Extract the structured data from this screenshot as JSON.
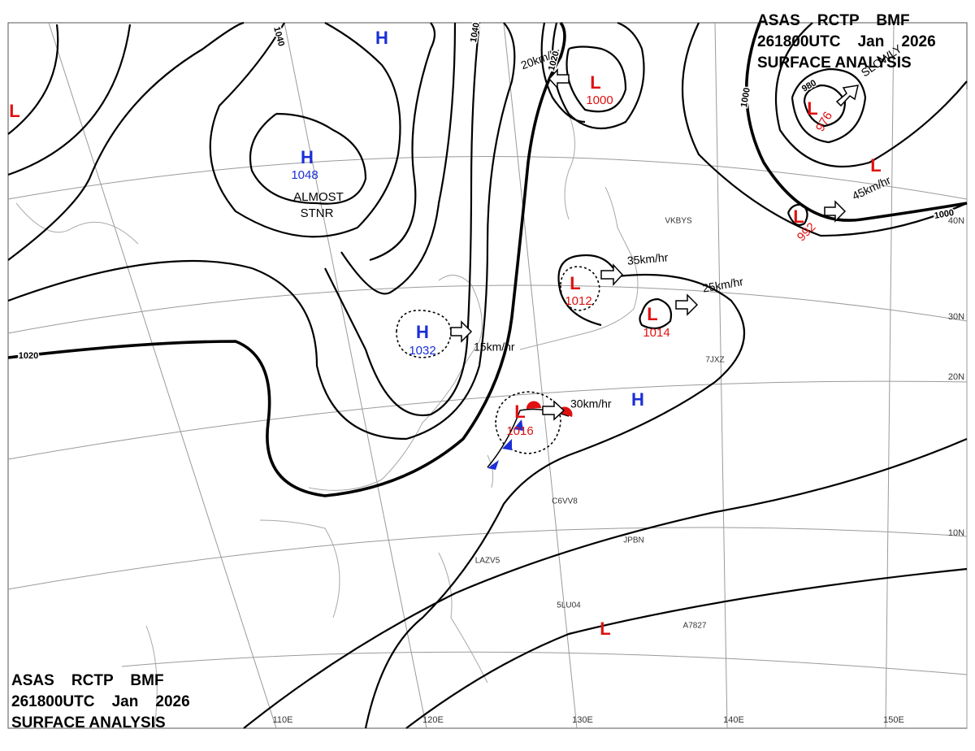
{
  "header": {
    "lines": [
      "ASAS    RCTP    BMF",
      "261800UTC    Jan    2026",
      "SURFACE ANALYSIS"
    ]
  },
  "footer": {
    "lines": [
      "ASAS    RCTP    BMF",
      "261800UTC    Jan    2026",
      "SURFACE ANALYSIS"
    ]
  },
  "systems": [
    {
      "symbol": "H"
    },
    {
      "symbol": "H",
      "pressure": "1048"
    },
    {
      "symbol": "H",
      "pressure": "1032"
    },
    {
      "symbol": "H"
    },
    {
      "symbol": "L"
    },
    {
      "symbol": "L",
      "pressure": "1000"
    },
    {
      "symbol": "L",
      "pressure": "976"
    },
    {
      "symbol": "L"
    },
    {
      "symbol": "L",
      "pressure": "992"
    },
    {
      "symbol": "L",
      "pressure": "1012"
    },
    {
      "symbol": "L",
      "pressure": "1014"
    },
    {
      "symbol": "L",
      "pressure": "1016"
    },
    {
      "symbol": "L"
    }
  ],
  "notes": [
    "ALMOST",
    "STNR"
  ],
  "motions": [
    "20km/hr",
    "35km/hr",
    "25km/hr",
    "15km/hr",
    "30km/hr",
    "45km/hr",
    "SLOWLY"
  ],
  "isobar_labels": [
    "1040",
    "1040",
    "1020",
    "1020",
    "1000",
    "1000",
    "980"
  ],
  "latitudes": [
    "40N",
    "30N",
    "20N",
    "10N"
  ],
  "longitudes": [
    "110E",
    "120E",
    "130E",
    "140E",
    "150E"
  ],
  "ships": [
    "VKBYS",
    "7JXZ",
    "C6VV8",
    "JPBN",
    "LAZV5",
    "5LU04",
    "A7827"
  ]
}
